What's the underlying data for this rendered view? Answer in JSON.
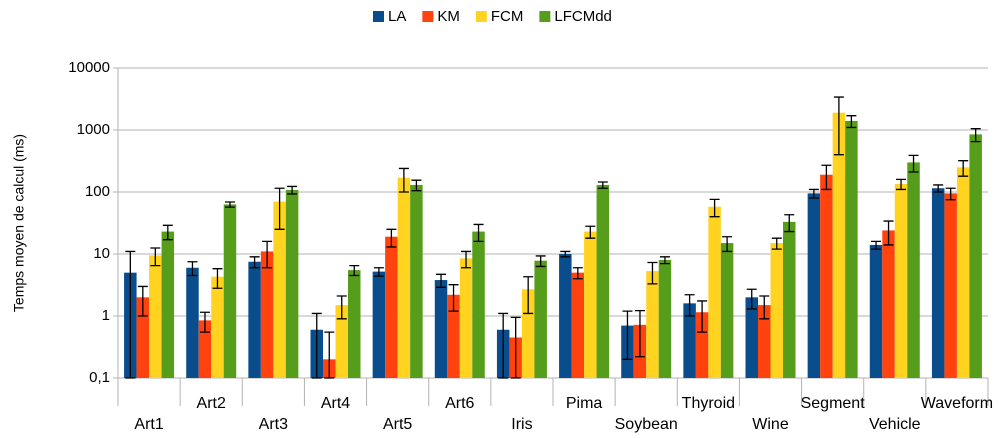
{
  "chart_data": {
    "type": "bar",
    "log_scale": true,
    "grid": true,
    "legend": "top",
    "y_label": "Temps moyen de calcul (ms)",
    "categories": [
      "Art1",
      "Art2",
      "Art3",
      "Art4",
      "Art5",
      "Art6",
      "Iris",
      "Pima",
      "Soybean",
      "Thyroid",
      "Wine",
      "Segment",
      "Vehicle",
      "Waveform"
    ],
    "ylim": [
      0.1,
      10000
    ],
    "yticks": [
      {
        "value": 0.1,
        "label": "0,1"
      },
      1,
      10,
      100,
      1000,
      10000
    ],
    "series": [
      {
        "name": "LA",
        "color": "#0a4d8c",
        "values": [
          5,
          6,
          7.5,
          0.6,
          5.2,
          3.8,
          0.6,
          10,
          0.7,
          1.6,
          2,
          95,
          14,
          115
        ],
        "errors": [
          6,
          1.5,
          1.5,
          0.5,
          0.8,
          0.9,
          0.5,
          1,
          0.5,
          0.6,
          0.7,
          15,
          2,
          15
        ]
      },
      {
        "name": "KM",
        "color": "#ff420e",
        "values": [
          2,
          0.85,
          11,
          0.2,
          19,
          2.2,
          0.45,
          5,
          0.72,
          1.15,
          1.5,
          190,
          24,
          95
        ],
        "errors": [
          1,
          0.3,
          5,
          0.35,
          6,
          1,
          0.5,
          1,
          0.5,
          0.6,
          0.6,
          80,
          10,
          20
        ]
      },
      {
        "name": "FCM",
        "color": "#ffd320",
        "values": [
          9.5,
          4.3,
          70,
          1.5,
          170,
          8.5,
          2.7,
          23,
          5.3,
          58,
          15,
          1900,
          135,
          250
        ],
        "errors": [
          3,
          1.5,
          45,
          0.6,
          70,
          2.5,
          1.6,
          5,
          2,
          18,
          3,
          1500,
          25,
          70
        ]
      },
      {
        "name": "LFCMdd",
        "color": "#579d1c",
        "values": [
          23,
          63,
          108,
          5.5,
          130,
          23,
          7.8,
          130,
          8,
          15,
          33,
          1400,
          300,
          850
        ],
        "errors": [
          6,
          6,
          15,
          1,
          25,
          7,
          1.5,
          15,
          1,
          4,
          10,
          300,
          90,
          200
        ]
      }
    ]
  }
}
